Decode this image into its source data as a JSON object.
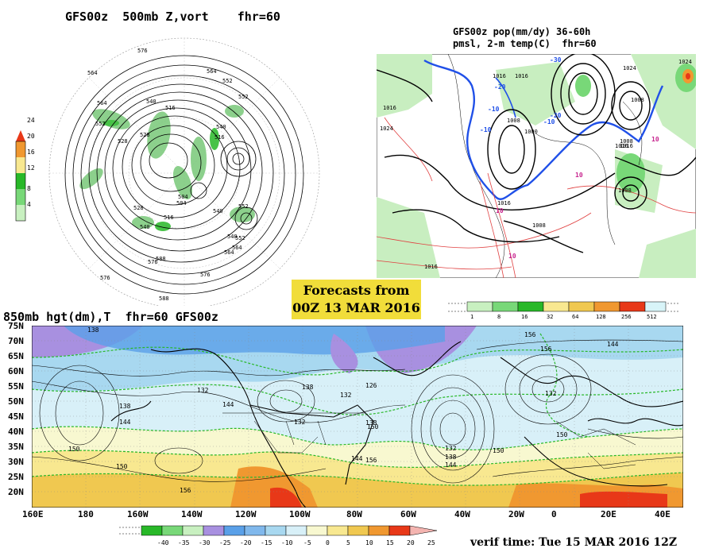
{
  "panel_500mb": {
    "title": "GFS00z  500mb Z,vort    fhr=60",
    "colorbar_ticks": [
      "24",
      "20",
      "16",
      "12",
      "8",
      "4"
    ],
    "contour_labels": [
      "576",
      "564",
      "552",
      "540",
      "528",
      "516",
      "504",
      "516",
      "540",
      "552",
      "564",
      "576",
      "588",
      "552",
      "564",
      "540",
      "528",
      "516",
      "504",
      "528",
      "540",
      "552",
      "564",
      "576",
      "588",
      "576",
      "564",
      "552",
      "540"
    ]
  },
  "panel_pop": {
    "title_line1": "GFS00z pop(mm/dy) 36-60h",
    "title_line2": "pmsl, 2-m temp(C)  fhr=60",
    "contour_labels": [
      "1016",
      "1024",
      "1008",
      "1000",
      "1016",
      "1008",
      "1016",
      "1024",
      "1008",
      "1016",
      "1008",
      "1016",
      "1016",
      "1016",
      "1008",
      "1024"
    ],
    "temp_labels": [
      "-20",
      "-10",
      "-10",
      "-20",
      "-30",
      "10",
      "10",
      "10",
      "10",
      "-10"
    ],
    "colorbar_ticks": [
      "1",
      "8",
      "16",
      "32",
      "64",
      "128",
      "256",
      "512"
    ]
  },
  "banner": {
    "line1": "Forecasts from",
    "line2": "00Z 13 MAR 2016"
  },
  "panel_850mb": {
    "title": "850mb hgt(dm),T  fhr=60 GFS00z",
    "lat_labels": [
      "75N",
      "70N",
      "65N",
      "60N",
      "55N",
      "50N",
      "45N",
      "40N",
      "35N",
      "30N",
      "25N",
      "20N"
    ],
    "lon_labels": [
      "160E",
      "180",
      "160W",
      "140W",
      "120W",
      "100W",
      "80W",
      "60W",
      "40W",
      "20W",
      "0",
      "20E",
      "40E"
    ],
    "contour_labels": [
      "138",
      "144",
      "150",
      "156",
      "132",
      "138",
      "144",
      "150",
      "156",
      "126",
      "132",
      "138",
      "132",
      "144",
      "150",
      "138",
      "144",
      "132",
      "138",
      "150",
      "156",
      "150",
      "156",
      "144",
      "132"
    ],
    "colorbar_ticks": [
      "-40",
      "-35",
      "-30",
      "-25",
      "-20",
      "-15",
      "-10",
      "-5",
      "0",
      "5",
      "10",
      "15",
      "20",
      "25"
    ],
    "colors": {
      "purple": "#a890e0",
      "blue": "#5aa0e8",
      "lightblue": "#a8d8f0",
      "paleblue": "#d8f0f8",
      "pale": "#f8f8d0",
      "yellow": "#f8e890",
      "gold": "#f0c850",
      "orange": "#f09830",
      "red": "#e83818",
      "green": "#28b828"
    }
  },
  "verif_time": "verif time: Tue 15 MAR 2016 12Z"
}
